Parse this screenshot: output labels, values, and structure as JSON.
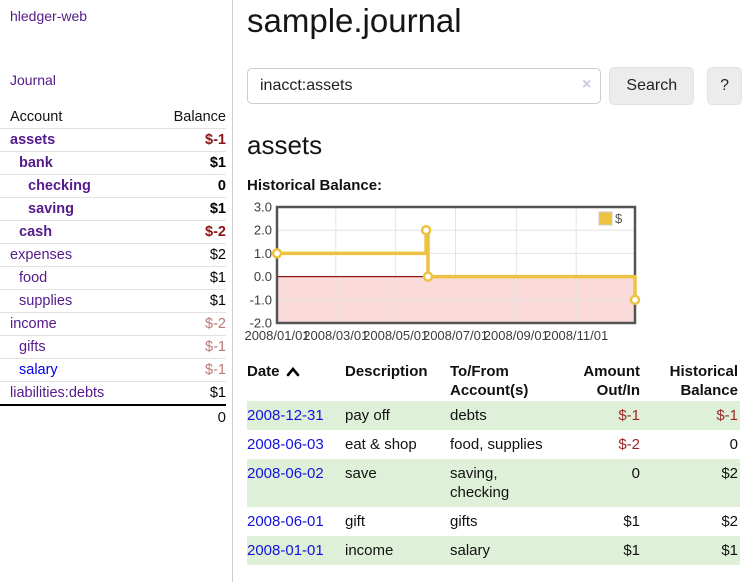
{
  "app": {
    "brand": "hledger-web"
  },
  "header": {
    "title": "sample.journal"
  },
  "search": {
    "value": "inacct:assets",
    "clear_icon": "×",
    "button": "Search",
    "help_button": "?"
  },
  "account_page": {
    "heading": "assets",
    "chart_label": "Historical Balance:"
  },
  "sidebar": {
    "journal_link": "Journal",
    "accounts_table": {
      "col_account": "Account",
      "col_balance": "Balance",
      "rows": [
        {
          "name": "assets",
          "indent": 1,
          "bold": true,
          "name_color": "purple",
          "balance": "$-1",
          "balance_class": "neg-bold"
        },
        {
          "name": "bank",
          "indent": 2,
          "bold": true,
          "name_color": "purple",
          "balance": "$1",
          "balance_class": "pos-bold"
        },
        {
          "name": "checking",
          "indent": 3,
          "bold": true,
          "name_color": "purple",
          "balance": "0",
          "balance_class": "pos-bold"
        },
        {
          "name": "saving",
          "indent": 3,
          "bold": true,
          "name_color": "purple",
          "balance": "$1",
          "balance_class": "pos-bold"
        },
        {
          "name": "cash",
          "indent": 2,
          "bold": true,
          "name_color": "purple",
          "balance": "$-2",
          "balance_class": "neg-bold"
        },
        {
          "name": "expenses",
          "indent": 1,
          "bold": false,
          "name_color": "purple",
          "balance": "$2",
          "balance_class": "pos"
        },
        {
          "name": "food",
          "indent": 2,
          "bold": false,
          "name_color": "purple",
          "balance": "$1",
          "balance_class": "pos"
        },
        {
          "name": "supplies",
          "indent": 2,
          "bold": false,
          "name_color": "purple",
          "balance": "$1",
          "balance_class": "pos"
        },
        {
          "name": "income",
          "indent": 1,
          "bold": false,
          "name_color": "purple",
          "balance": "$-2",
          "balance_class": "neg-muted"
        },
        {
          "name": "gifts",
          "indent": 2,
          "bold": false,
          "name_color": "purple",
          "balance": "$-1",
          "balance_class": "neg-muted"
        },
        {
          "name": "salary",
          "indent": 2,
          "bold": false,
          "name_color": "blue",
          "balance": "$-1",
          "balance_class": "neg-muted"
        },
        {
          "name": "liabilities:debts",
          "indent": 1,
          "bold": false,
          "name_color": "purple",
          "balance": "$1",
          "balance_class": "pos"
        }
      ],
      "total": "0"
    }
  },
  "chart_data": {
    "type": "line",
    "step": true,
    "title": "Historical Balance:",
    "series": [
      {
        "name": "$",
        "color": "#edc240",
        "points": [
          [
            "2008-01-01",
            1
          ],
          [
            "2008-06-01",
            2
          ],
          [
            "2008-06-03",
            0
          ],
          [
            "2008-12-31",
            -1
          ]
        ]
      }
    ],
    "xrange": [
      "2008-01-01",
      "2008-12-31"
    ],
    "ylim": [
      -2,
      3
    ],
    "ytick_values": [
      3,
      2,
      1,
      0,
      -1,
      -2
    ],
    "yticks": [
      "3.0",
      "2.0",
      "1.0",
      "0.0",
      "-1.0",
      "-2.0"
    ],
    "xticks": [
      {
        "label": "2008/01/01",
        "date": "2008-01-01"
      },
      {
        "label": "2008/03/01",
        "date": "2008-03-01"
      },
      {
        "label": "2008/05/01",
        "date": "2008-05-01"
      },
      {
        "label": "2008/07/01",
        "date": "2008-07-01"
      },
      {
        "label": "2008/09/01",
        "date": "2008-09-01"
      },
      {
        "label": "2008/11/01",
        "date": "2008-11-01"
      }
    ],
    "grid": true,
    "legend_position": "top-right",
    "negative_region_fill": "#fbdada",
    "zero_line_color": "#8b1a1a",
    "frame_color": "#545454",
    "gridline_color": "#e3e3e3",
    "tick_label_color": "#3c3c3c"
  },
  "transactions": {
    "headers": [
      {
        "lines": [
          "Date"
        ],
        "align": "left",
        "sort": true
      },
      {
        "lines": [
          "Description"
        ],
        "align": "left"
      },
      {
        "lines": [
          "To/From",
          "Account(s)"
        ],
        "align": "left"
      },
      {
        "lines": [
          "Amount",
          "Out/In"
        ],
        "align": "right"
      },
      {
        "lines": [
          "Historical",
          "Balance"
        ],
        "align": "right"
      }
    ],
    "rows": [
      {
        "date": "2008-12-31",
        "description": "pay off",
        "accounts": [
          "debts"
        ],
        "amount": "$-1",
        "amount_neg": true,
        "balance": "$-1",
        "balance_neg": true
      },
      {
        "date": "2008-06-03",
        "description": "eat & shop",
        "accounts": [
          "food, supplies"
        ],
        "amount": "$-2",
        "amount_neg": true,
        "balance": "0",
        "balance_neg": false
      },
      {
        "date": "2008-06-02",
        "description": "save",
        "accounts": [
          "saving,",
          "checking"
        ],
        "amount": "0",
        "amount_neg": false,
        "balance": "$2",
        "balance_neg": false
      },
      {
        "date": "2008-06-01",
        "description": "gift",
        "accounts": [
          "gifts"
        ],
        "amount": "$1",
        "amount_neg": false,
        "balance": "$2",
        "balance_neg": false
      },
      {
        "date": "2008-01-01",
        "description": "income",
        "accounts": [
          "salary"
        ],
        "amount": "$1",
        "amount_neg": false,
        "balance": "$1",
        "balance_neg": false
      }
    ]
  },
  "colors": {
    "link_purple": "#551A8B",
    "link_blue": "#0000EE",
    "date_link_blue": "#1212e0",
    "negative_bold_red": "#8b1515",
    "negative_muted_rose": "#bb7878",
    "table_negative_red": "#9e2626",
    "row_stripe_green": "#dff0d8",
    "chart_series_gold": "#edc240",
    "chart_negative_fill": "#fbdada",
    "chart_zero_line": "#8b1a1a"
  }
}
